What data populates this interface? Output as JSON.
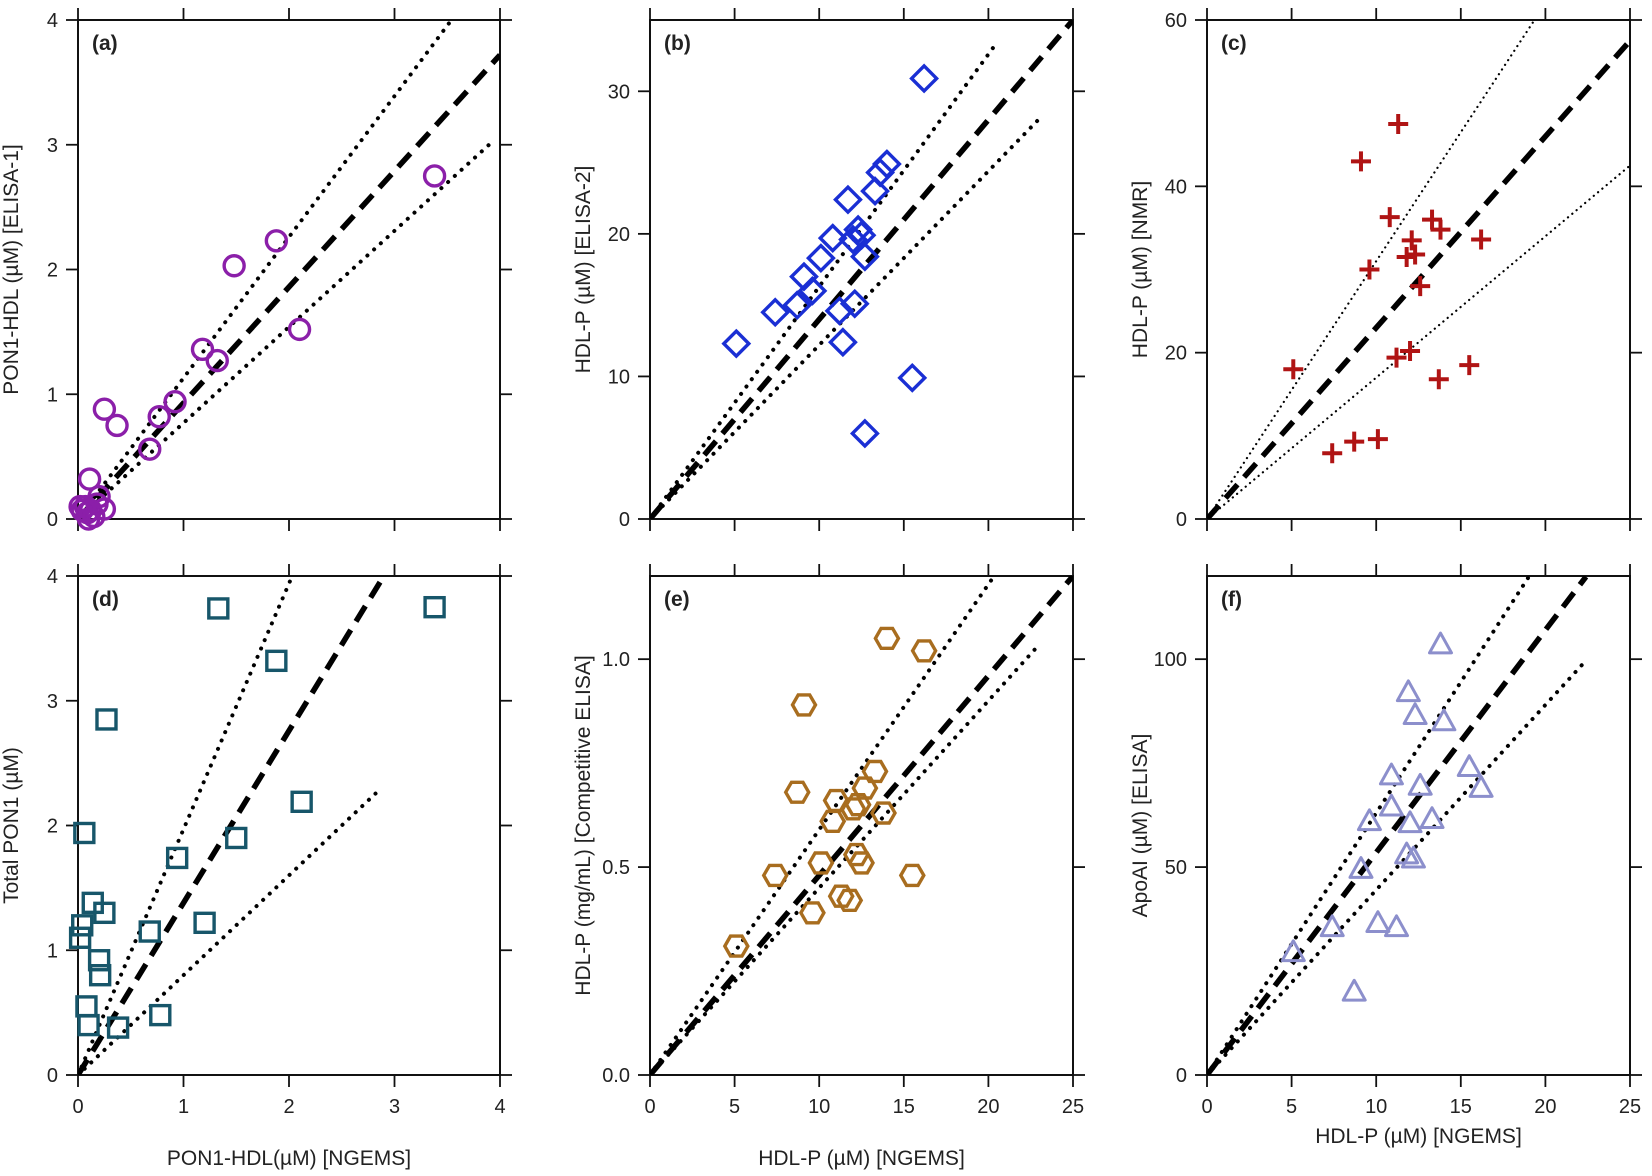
{
  "chart_data": [
    {
      "id": "a",
      "type": "scatter",
      "panel_label": "(a)",
      "xlabel": "",
      "ylabel": "PON1-HDL (µM) [ELISA-1]",
      "xlim": [
        0,
        4
      ],
      "ylim": [
        0,
        4
      ],
      "x_ticks": [
        0,
        1,
        2,
        3,
        4
      ],
      "x_tick_labels": [
        "",
        "",
        "",
        "",
        ""
      ],
      "y_ticks": [
        0,
        1,
        2,
        3,
        4
      ],
      "y_tick_labels": [
        "0",
        "1",
        "2",
        "3",
        "4"
      ],
      "marker": "circle",
      "color": "#8b1fa9",
      "points": [
        [
          0.02,
          0.1
        ],
        [
          0.04,
          0.07
        ],
        [
          0.07,
          0.1
        ],
        [
          0.09,
          0.05
        ],
        [
          0.1,
          0.0
        ],
        [
          0.12,
          0.07
        ],
        [
          0.15,
          0.02
        ],
        [
          0.18,
          0.12
        ],
        [
          0.2,
          0.18
        ],
        [
          0.25,
          0.08
        ],
        [
          0.11,
          0.32
        ],
        [
          0.25,
          0.88
        ],
        [
          0.37,
          0.75
        ],
        [
          0.68,
          0.56
        ],
        [
          0.77,
          0.82
        ],
        [
          0.92,
          0.94
        ],
        [
          1.18,
          1.36
        ],
        [
          1.32,
          1.27
        ],
        [
          1.48,
          2.03
        ],
        [
          1.88,
          2.23
        ],
        [
          2.1,
          1.52
        ],
        [
          3.38,
          2.75
        ]
      ],
      "lines": [
        {
          "style": "dashed",
          "slope": 0.93,
          "xmax": 4.0
        },
        {
          "style": "dotted",
          "slope": 1.13,
          "xmax": 3.55
        },
        {
          "style": "dotted",
          "slope": 0.77,
          "xmax": 3.95
        }
      ]
    },
    {
      "id": "b",
      "type": "scatter",
      "panel_label": "(b)",
      "xlabel": "",
      "ylabel": "HDL-P (µM) [ELISA-2]",
      "xlim": [
        0,
        25
      ],
      "ylim": [
        0,
        35
      ],
      "x_ticks": [
        0,
        5,
        10,
        15,
        20,
        25
      ],
      "x_tick_labels": [
        "",
        "",
        "",
        "",
        "",
        ""
      ],
      "y_ticks": [
        0,
        10,
        20,
        30
      ],
      "y_tick_labels": [
        "0",
        "10",
        "20",
        "30"
      ],
      "marker": "diamond",
      "color": "#1a2fd4",
      "points": [
        [
          5.1,
          12.3
        ],
        [
          7.4,
          14.5
        ],
        [
          8.7,
          15.0
        ],
        [
          9.1,
          17.0
        ],
        [
          9.6,
          16.0
        ],
        [
          10.1,
          18.3
        ],
        [
          10.8,
          19.7
        ],
        [
          11.2,
          14.6
        ],
        [
          11.4,
          12.4
        ],
        [
          11.7,
          22.4
        ],
        [
          12.0,
          19.6
        ],
        [
          12.1,
          15.1
        ],
        [
          12.3,
          20.3
        ],
        [
          12.5,
          19.9
        ],
        [
          12.7,
          18.4
        ],
        [
          12.7,
          6.0
        ],
        [
          13.3,
          23.0
        ],
        [
          13.6,
          24.3
        ],
        [
          14.0,
          24.9
        ],
        [
          15.5,
          9.9
        ],
        [
          16.2,
          30.9
        ]
      ],
      "lines": [
        {
          "style": "dashed",
          "slope": 1.4,
          "xmax": 25
        },
        {
          "style": "dotted",
          "slope": 1.63,
          "xmax": 20.5
        },
        {
          "style": "dotted",
          "slope": 1.22,
          "xmax": 23.0
        }
      ]
    },
    {
      "id": "c",
      "type": "scatter",
      "panel_label": "(c)",
      "xlabel": "",
      "ylabel": "HDL-P (µM) [NMR]",
      "xlim": [
        0,
        25
      ],
      "ylim": [
        0,
        60
      ],
      "x_ticks": [
        0,
        5,
        10,
        15,
        20,
        25
      ],
      "x_tick_labels": [
        "",
        "",
        "",
        "",
        "",
        ""
      ],
      "y_ticks": [
        0,
        20,
        40,
        60
      ],
      "y_tick_labels": [
        "0",
        "20",
        "40",
        "60"
      ],
      "marker": "plus",
      "color": "#b01414",
      "points": [
        [
          5.1,
          18.0
        ],
        [
          7.4,
          7.9
        ],
        [
          8.7,
          9.3
        ],
        [
          9.1,
          43.0
        ],
        [
          9.6,
          30.0
        ],
        [
          10.1,
          9.6
        ],
        [
          10.8,
          36.3
        ],
        [
          11.2,
          19.4
        ],
        [
          11.8,
          31.5
        ],
        [
          12.0,
          20.2
        ],
        [
          12.1,
          33.5
        ],
        [
          12.3,
          31.8
        ],
        [
          12.6,
          28.0
        ],
        [
          13.3,
          36.0
        ],
        [
          13.8,
          34.8
        ],
        [
          13.7,
          16.8
        ],
        [
          15.5,
          18.5
        ],
        [
          16.2,
          33.6
        ],
        [
          11.3,
          47.5
        ]
      ],
      "lines": [
        {
          "style": "dashed",
          "slope": 2.3,
          "xmax": 25
        },
        {
          "style": "dotted-thin",
          "slope": 3.1,
          "xmax": 20.5
        },
        {
          "style": "dotted-thin",
          "slope": 1.7,
          "xmax": 25
        }
      ]
    },
    {
      "id": "d",
      "type": "scatter",
      "panel_label": "(d)",
      "xlabel": "PON1-HDL(µM) [NGEMS]",
      "ylabel": "Total PON1 (µM)",
      "xlim": [
        0,
        4
      ],
      "ylim": [
        0,
        4
      ],
      "x_ticks": [
        0,
        1,
        2,
        3,
        4
      ],
      "x_tick_labels": [
        "0",
        "1",
        "2",
        "3",
        "4"
      ],
      "y_ticks": [
        0,
        1,
        2,
        3,
        4
      ],
      "y_tick_labels": [
        "0",
        "1",
        "2",
        "3",
        "4"
      ],
      "marker": "square",
      "color": "#17566a",
      "points": [
        [
          0.02,
          1.1
        ],
        [
          0.04,
          1.2
        ],
        [
          0.06,
          1.94
        ],
        [
          0.08,
          0.55
        ],
        [
          0.1,
          0.4
        ],
        [
          0.14,
          1.38
        ],
        [
          0.2,
          0.92
        ],
        [
          0.21,
          0.8
        ],
        [
          0.25,
          1.3
        ],
        [
          0.27,
          2.85
        ],
        [
          0.38,
          0.38
        ],
        [
          0.68,
          1.15
        ],
        [
          0.78,
          0.48
        ],
        [
          0.94,
          1.74
        ],
        [
          1.2,
          1.22
        ],
        [
          1.33,
          3.74
        ],
        [
          1.5,
          1.9
        ],
        [
          1.88,
          3.32
        ],
        [
          2.12,
          2.19
        ],
        [
          3.38,
          3.75
        ]
      ],
      "lines": [
        {
          "style": "dashed",
          "slope": 1.38,
          "xmax": 2.93
        },
        {
          "style": "dotted",
          "slope": 1.97,
          "xmax": 2.03
        },
        {
          "style": "dotted",
          "slope": 0.8,
          "xmax": 2.82
        }
      ]
    },
    {
      "id": "e",
      "type": "scatter",
      "panel_label": "(e)",
      "xlabel": "HDL-P (µM) [NGEMS]",
      "ylabel": "HDL-P (mg/mL) [Competitive ELISA]",
      "xlim": [
        0,
        25
      ],
      "ylim": [
        0,
        1.2
      ],
      "x_ticks": [
        0,
        5,
        10,
        15,
        20,
        25
      ],
      "x_tick_labels": [
        "0",
        "5",
        "10",
        "15",
        "20",
        "25"
      ],
      "y_ticks": [
        0,
        0.5,
        1.0
      ],
      "y_tick_labels": [
        "0.0",
        "0.5",
        "1.0"
      ],
      "marker": "hexagon",
      "color": "#a86d1f",
      "points": [
        [
          5.1,
          0.31
        ],
        [
          7.4,
          0.48
        ],
        [
          8.7,
          0.68
        ],
        [
          9.1,
          0.89
        ],
        [
          9.6,
          0.39
        ],
        [
          10.1,
          0.51
        ],
        [
          10.8,
          0.61
        ],
        [
          11.0,
          0.66
        ],
        [
          11.3,
          0.43
        ],
        [
          11.8,
          0.42
        ],
        [
          12.0,
          0.64
        ],
        [
          12.2,
          0.53
        ],
        [
          12.3,
          0.65
        ],
        [
          12.5,
          0.51
        ],
        [
          12.7,
          0.69
        ],
        [
          13.3,
          0.73
        ],
        [
          13.8,
          0.63
        ],
        [
          14.0,
          1.05
        ],
        [
          15.5,
          0.48
        ],
        [
          16.2,
          1.02
        ]
      ],
      "lines": [
        {
          "style": "dashed",
          "slope": 0.048,
          "xmax": 25
        },
        {
          "style": "dotted",
          "slope": 0.059,
          "xmax": 20.5
        },
        {
          "style": "dotted",
          "slope": 0.045,
          "xmax": 23
        }
      ]
    },
    {
      "id": "f",
      "type": "scatter",
      "panel_label": "(f)",
      "xlabel": "HDL-P (µM) [NGEMS]",
      "ylabel": "ApoAI (µM) [ELISA]",
      "xlim": [
        0,
        25
      ],
      "ylim": [
        0,
        120
      ],
      "x_ticks": [
        0,
        5,
        10,
        15,
        20,
        25
      ],
      "x_tick_labels": [
        "0",
        "5",
        "10",
        "15",
        "20",
        "25"
      ],
      "y_ticks": [
        0,
        50,
        100
      ],
      "y_tick_labels": [
        "0",
        "50",
        "100"
      ],
      "marker": "triangle",
      "color": "#8c8fcc",
      "points": [
        [
          5.1,
          29.5
        ],
        [
          7.4,
          35.5
        ],
        [
          8.7,
          20.0
        ],
        [
          9.1,
          49.5
        ],
        [
          9.6,
          61.0
        ],
        [
          10.1,
          36.5
        ],
        [
          10.9,
          72.0
        ],
        [
          10.9,
          64.5
        ],
        [
          11.2,
          35.5
        ],
        [
          11.8,
          53.0
        ],
        [
          11.9,
          92.0
        ],
        [
          12.0,
          60.5
        ],
        [
          12.2,
          52.0
        ],
        [
          12.3,
          86.5
        ],
        [
          12.6,
          69.5
        ],
        [
          13.3,
          61.5
        ],
        [
          13.8,
          103.5
        ],
        [
          14.0,
          85.0
        ],
        [
          15.5,
          74.0
        ],
        [
          16.2,
          69.0
        ]
      ],
      "lines": [
        {
          "style": "dashed",
          "slope": 5.35,
          "xmax": 22.4
        },
        {
          "style": "dotted",
          "slope": 6.3,
          "xmax": 19.0
        },
        {
          "style": "dotted",
          "slope": 4.45,
          "xmax": 22.4
        }
      ]
    }
  ]
}
